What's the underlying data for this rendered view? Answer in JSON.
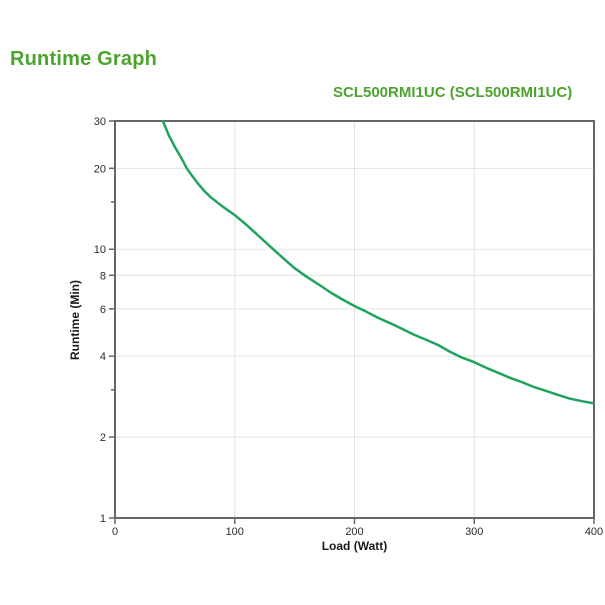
{
  "header": {
    "title": "Runtime Graph"
  },
  "colors": {
    "accent_green": "#4da32f",
    "curve_green": "#1fa35e",
    "axis_gray": "#666666",
    "grid_gray": "#e3e3e3",
    "text_dark": "#2b2b2b",
    "background": "#ffffff"
  },
  "chart_data": {
    "type": "line",
    "title": "Runtime Graph",
    "subtitle": "SCL500RMI1UC (SCL500RMI1UC)",
    "xlabel": "Load (Watt)",
    "ylabel": "Runtime (Min)",
    "x_scale": "linear",
    "y_scale": "log",
    "xlim": [
      0,
      400
    ],
    "ylim": [
      1,
      30
    ],
    "x_ticks": [
      0,
      100,
      200,
      300,
      400
    ],
    "y_ticks_labeled": [
      1,
      2,
      4,
      6,
      8,
      10,
      20,
      30
    ],
    "y_ticks_unlabeled": [
      3,
      15
    ],
    "x_gridlines": [
      100,
      200,
      300
    ],
    "y_gridlines": [
      2,
      4,
      6,
      8,
      10,
      20
    ],
    "grid_on": true,
    "legend": "none",
    "series": [
      {
        "name": "SCL500RMI1UC runtime",
        "color": "#1fa35e",
        "points": [
          [
            40,
            30
          ],
          [
            45,
            26.5
          ],
          [
            50,
            24
          ],
          [
            55,
            22
          ],
          [
            60,
            20
          ],
          [
            65,
            18.6
          ],
          [
            70,
            17.4
          ],
          [
            75,
            16.4
          ],
          [
            80,
            15.6
          ],
          [
            90,
            14.4
          ],
          [
            100,
            13.4
          ],
          [
            110,
            12.3
          ],
          [
            120,
            11.2
          ],
          [
            130,
            10.2
          ],
          [
            140,
            9.3
          ],
          [
            150,
            8.5
          ],
          [
            160,
            7.9
          ],
          [
            170,
            7.4
          ],
          [
            180,
            6.9
          ],
          [
            190,
            6.5
          ],
          [
            200,
            6.15
          ],
          [
            210,
            5.85
          ],
          [
            220,
            5.55
          ],
          [
            230,
            5.3
          ],
          [
            240,
            5.05
          ],
          [
            250,
            4.8
          ],
          [
            260,
            4.6
          ],
          [
            270,
            4.4
          ],
          [
            280,
            4.15
          ],
          [
            290,
            3.95
          ],
          [
            300,
            3.8
          ],
          [
            310,
            3.62
          ],
          [
            320,
            3.47
          ],
          [
            330,
            3.32
          ],
          [
            340,
            3.2
          ],
          [
            350,
            3.07
          ],
          [
            360,
            2.97
          ],
          [
            370,
            2.87
          ],
          [
            380,
            2.78
          ],
          [
            390,
            2.72
          ],
          [
            400,
            2.67
          ]
        ]
      }
    ]
  }
}
